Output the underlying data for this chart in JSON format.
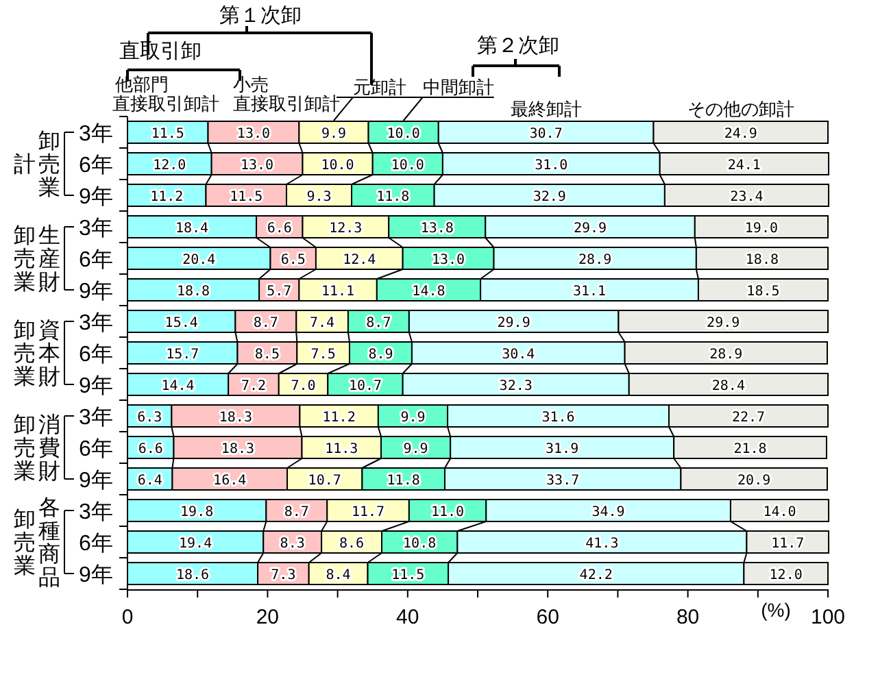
{
  "chart_data": {
    "type": "bar",
    "orientation": "horizontal",
    "stacked": true,
    "legend": "top",
    "categories": [
      "3年",
      "6年",
      "9年",
      "3年",
      "6年",
      "9年",
      "3年",
      "6年",
      "9年",
      "3年",
      "6年",
      "9年",
      "3年",
      "6年",
      "9年"
    ],
    "series": [
      {
        "name": "他部門直接取引卸計",
        "color": "#99ffff",
        "values": [
          11.5,
          12.0,
          11.2,
          18.4,
          20.4,
          18.8,
          15.4,
          15.7,
          14.4,
          6.3,
          6.6,
          6.4,
          19.8,
          19.4,
          18.6
        ],
        "value_labels": [
          "11.5",
          "12.0",
          "11.2",
          "18.4",
          "20.4",
          "18.8",
          "15.4",
          "15.7",
          "14.4",
          "6.3",
          "6.6",
          "6.4",
          "19.8",
          "19.4",
          "18.6"
        ]
      },
      {
        "name": "小売直接取引卸計",
        "color": "#ffc4c4",
        "values": [
          13.0,
          13.0,
          11.5,
          6.6,
          6.5,
          5.7,
          8.7,
          8.5,
          7.2,
          18.3,
          18.3,
          16.4,
          8.7,
          8.3,
          7.3
        ],
        "value_labels": [
          "13.0",
          "13.0",
          "11.5",
          "6.6",
          "6.5",
          "5.7",
          "8.7",
          "8.5",
          "7.2",
          "18.3",
          "18.3",
          "16.4",
          "8.7",
          "8.3",
          "7.3"
        ]
      },
      {
        "name": "元卸計",
        "color": "#ffffc4",
        "values": [
          9.9,
          10.0,
          9.3,
          12.3,
          12.4,
          11.1,
          7.4,
          7.5,
          7.0,
          11.2,
          11.3,
          10.7,
          11.7,
          8.6,
          8.4
        ],
        "value_labels": [
          "9.9",
          "10.0",
          "9.3",
          "12.3",
          "12.4",
          "11.1",
          "7.4",
          "7.5",
          "7.0",
          "11.2",
          "11.3",
          "10.7",
          "11.7",
          "8.6",
          "8.4"
        ]
      },
      {
        "name": "中間卸計",
        "color": "#66ffcc",
        "values": [
          10.0,
          10.0,
          11.8,
          13.8,
          13.0,
          14.8,
          8.7,
          8.9,
          10.7,
          9.9,
          9.9,
          11.8,
          11.0,
          10.8,
          11.5
        ],
        "value_labels": [
          "10.0",
          "10.0",
          "11.8",
          "13.8",
          "13.0",
          "14.8",
          "8.7",
          "8.9",
          "10.7",
          "9.9",
          "9.9",
          "11.8",
          "11.0",
          "10.8",
          "11.5"
        ]
      },
      {
        "name": "最終卸計",
        "color": "#ccffff",
        "values": [
          30.7,
          31.0,
          32.9,
          29.9,
          28.9,
          31.1,
          29.9,
          30.4,
          32.3,
          31.6,
          31.9,
          33.7,
          34.9,
          41.3,
          42.2
        ],
        "value_labels": [
          "30.7",
          "31.0",
          "32.9",
          "29.9",
          "28.9",
          "31.1",
          "29.9",
          "30.4",
          "32.3",
          "31.6",
          "31.9",
          "33.7",
          "34.9",
          "41.3",
          "42.2"
        ]
      },
      {
        "name": "その他の卸計",
        "color": "#ecece6",
        "values": [
          24.9,
          24.1,
          23.4,
          19.0,
          18.8,
          18.5,
          29.9,
          28.9,
          28.4,
          22.7,
          21.8,
          20.9,
          14.0,
          11.7,
          12.0
        ],
        "value_labels": [
          "24.9",
          "24.1",
          "23.4",
          "19.0",
          "18.8",
          "18.5",
          "29.9",
          "28.9",
          "28.4",
          "22.7",
          "21.8",
          "20.9",
          "14.0",
          "11.7",
          "12.0"
        ]
      }
    ],
    "xlim": [
      0,
      100
    ],
    "xticks": [
      0,
      {
        "value": 10,
        "label": null
      },
      20,
      {
        "value": 30,
        "label": null
      },
      40,
      {
        "value": 50,
        "label": null
      },
      60,
      {
        "value": 70,
        "label": null
      },
      80,
      {
        "value": 90,
        "label": null
      },
      100
    ],
    "xlabel": "(%)",
    "annotations": [
      "第１次卸",
      "直取引卸",
      "第２次卸",
      "卸売業計",
      "生産財卸売業",
      "資本財卸売業",
      "消費財卸売業",
      "各種商品卸売業"
    ]
  }
}
